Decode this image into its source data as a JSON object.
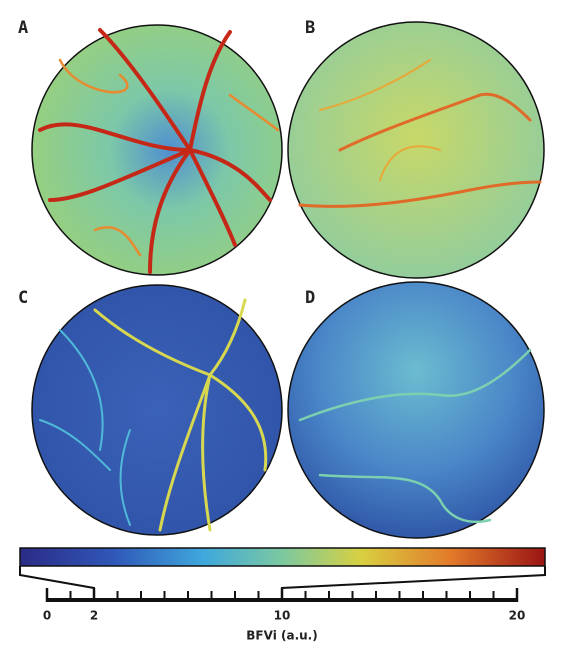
{
  "panels": [
    {
      "label": "A"
    },
    {
      "label": "B"
    },
    {
      "label": "C"
    },
    {
      "label": "D"
    }
  ],
  "colorbar": {
    "label": "BFVi (a.u.)",
    "xlim": [
      0,
      20
    ],
    "xticks": [
      0,
      2,
      10,
      20
    ],
    "minor_step": 1,
    "color_range": [
      2,
      10
    ]
  }
}
